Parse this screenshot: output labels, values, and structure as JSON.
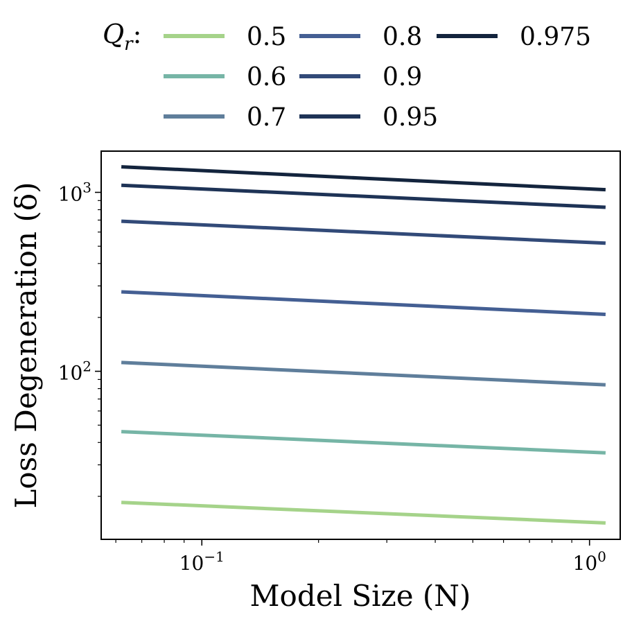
{
  "chart_data": {
    "type": "line",
    "xscale": "log",
    "yscale": "log",
    "xlabel": "Model Size (N)",
    "ylabel": "Loss Degeneration (δ)",
    "xlim": [
      0.055,
      1.2
    ],
    "ylim": [
      11.5,
      1700
    ],
    "x_ticks": [
      {
        "value": 0.1,
        "base": "10",
        "exp": "−1"
      },
      {
        "value": 1,
        "base": "10",
        "exp": "0"
      }
    ],
    "y_ticks": [
      {
        "value": 100,
        "base": "10",
        "exp": "2"
      },
      {
        "value": 1000,
        "base": "10",
        "exp": "3"
      }
    ],
    "legend_title": "Q",
    "legend_title_sub": "r",
    "legend_title_suffix": ":",
    "x": [
      0.062,
      1.1
    ],
    "series": [
      {
        "name": "0.5",
        "color": "#a5d38a",
        "values": [
          18.5,
          14.2
        ]
      },
      {
        "name": "0.6",
        "color": "#76b5a6",
        "values": [
          46,
          35
        ]
      },
      {
        "name": "0.7",
        "color": "#5f7e9b",
        "values": [
          112,
          84
        ]
      },
      {
        "name": "0.8",
        "color": "#445f93",
        "values": [
          278,
          208
        ]
      },
      {
        "name": "0.9",
        "color": "#324a78",
        "values": [
          690,
          520
        ]
      },
      {
        "name": "0.95",
        "color": "#1e3356",
        "values": [
          1095,
          825
        ]
      },
      {
        "name": "0.975",
        "color": "#13243d",
        "values": [
          1390,
          1035
        ]
      }
    ]
  }
}
